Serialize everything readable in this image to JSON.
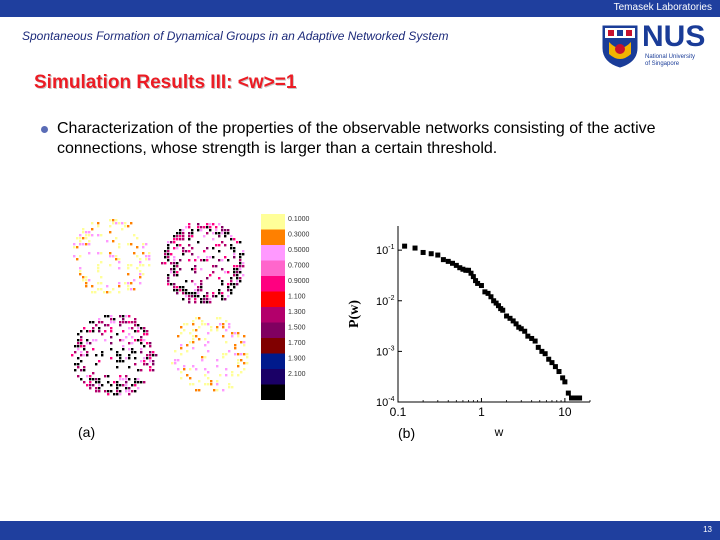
{
  "header": {
    "organization": "Temasek Laboratories"
  },
  "subtitle": "Spontaneous Formation of Dynamical Groups in an Adaptive Networked System",
  "logo": {
    "name": "NUS",
    "tagline_lines": [
      "National University",
      "of Singapore"
    ]
  },
  "slide_title": "Simulation Results III: <w>=1",
  "bullet": "Characterization of the properties of the observable networks consisting of the active connections, whose strength is larger than a certain threshold.",
  "figure_a": {
    "caption": "(a)",
    "legend": [
      {
        "label": "0.1000",
        "color": "#ffff99"
      },
      {
        "label": "0.3000",
        "color": "#ff8000"
      },
      {
        "label": "0.5000",
        "color": "#ff99ff"
      },
      {
        "label": "0.7000",
        "color": "#ff66cc"
      },
      {
        "label": "0.9000",
        "color": "#ff0080"
      },
      {
        "label": "1.100",
        "color": "#ff0000"
      },
      {
        "label": "1.300",
        "color": "#b3006b"
      },
      {
        "label": "1.500",
        "color": "#800060"
      },
      {
        "label": "1.700",
        "color": "#800000"
      },
      {
        "label": "1.900",
        "color": "#001a8c"
      },
      {
        "label": "2.100",
        "color": "#1a0066"
      },
      {
        "label": "",
        "color": "#000000"
      }
    ]
  },
  "chart_data": {
    "type": "scatter",
    "caption": "(b)",
    "xlabel": "w",
    "ylabel": "P(w)",
    "xscale": "log",
    "yscale": "log",
    "xlim": [
      0.1,
      20
    ],
    "ylim": [
      0.0001,
      0.3
    ],
    "x_ticks": [
      {
        "label": "0.1",
        "value": 0.1
      },
      {
        "label": "1",
        "value": 1
      },
      {
        "label": "10",
        "value": 10
      }
    ],
    "y_ticks": [
      {
        "base": "10",
        "exp": "-1",
        "value": 0.1
      },
      {
        "base": "10",
        "exp": "-2",
        "value": 0.01
      },
      {
        "base": "10",
        "exp": "-3",
        "value": 0.001
      },
      {
        "base": "10",
        "exp": "-4",
        "value": 0.0001
      }
    ],
    "points": [
      [
        0.12,
        0.12
      ],
      [
        0.16,
        0.11
      ],
      [
        0.2,
        0.09
      ],
      [
        0.25,
        0.085
      ],
      [
        0.3,
        0.08
      ],
      [
        0.35,
        0.065
      ],
      [
        0.4,
        0.06
      ],
      [
        0.45,
        0.055
      ],
      [
        0.5,
        0.05
      ],
      [
        0.55,
        0.045
      ],
      [
        0.6,
        0.042
      ],
      [
        0.65,
        0.04
      ],
      [
        0.7,
        0.04
      ],
      [
        0.75,
        0.035
      ],
      [
        0.8,
        0.03
      ],
      [
        0.85,
        0.025
      ],
      [
        0.9,
        0.022
      ],
      [
        1.0,
        0.02
      ],
      [
        1.1,
        0.015
      ],
      [
        1.2,
        0.014
      ],
      [
        1.3,
        0.012
      ],
      [
        1.4,
        0.01
      ],
      [
        1.5,
        0.009
      ],
      [
        1.6,
        0.008
      ],
      [
        1.7,
        0.007
      ],
      [
        1.8,
        0.0065
      ],
      [
        2.0,
        0.005
      ],
      [
        2.2,
        0.0045
      ],
      [
        2.4,
        0.004
      ],
      [
        2.6,
        0.0035
      ],
      [
        2.8,
        0.003
      ],
      [
        3.0,
        0.0028
      ],
      [
        3.3,
        0.0025
      ],
      [
        3.6,
        0.002
      ],
      [
        4.0,
        0.0018
      ],
      [
        4.4,
        0.0016
      ],
      [
        4.8,
        0.0012
      ],
      [
        5.3,
        0.001
      ],
      [
        5.8,
        0.0009
      ],
      [
        6.4,
        0.0007
      ],
      [
        7.0,
        0.0006
      ],
      [
        7.7,
        0.0005
      ],
      [
        8.5,
        0.0004
      ],
      [
        9.4,
        0.0003
      ],
      [
        10.0,
        0.00025
      ],
      [
        11.0,
        0.00015
      ],
      [
        12.0,
        0.00012
      ],
      [
        13.0,
        0.00012
      ],
      [
        14.0,
        0.00012
      ],
      [
        15.0,
        0.00012
      ]
    ]
  },
  "footer": {
    "page_number": "13"
  }
}
